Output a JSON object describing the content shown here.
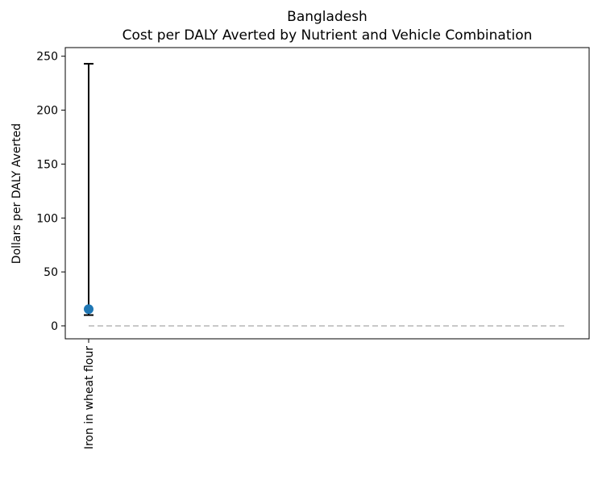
{
  "chart_data": {
    "type": "scatter",
    "title": "Bangladesh",
    "subtitle": "Cost per DALY Averted by Nutrient and Vehicle Combination",
    "xlabel": "",
    "ylabel": "Dollars per DALY Averted",
    "categories": [
      "Iron in wheat flour"
    ],
    "series": [
      {
        "values": [
          15.5
        ],
        "error_low": [
          10
        ],
        "error_high": [
          243
        ]
      }
    ],
    "reference_line": {
      "value": 0,
      "style": "dashed"
    },
    "ylim": [
      -12,
      258
    ],
    "yticks": [
      0,
      50,
      100,
      150,
      200,
      250
    ],
    "grid": false,
    "colors": {
      "point": "#1f77b4",
      "errorbar": "#000000",
      "reference": "#c8c8c8",
      "axes": "#000000"
    }
  }
}
